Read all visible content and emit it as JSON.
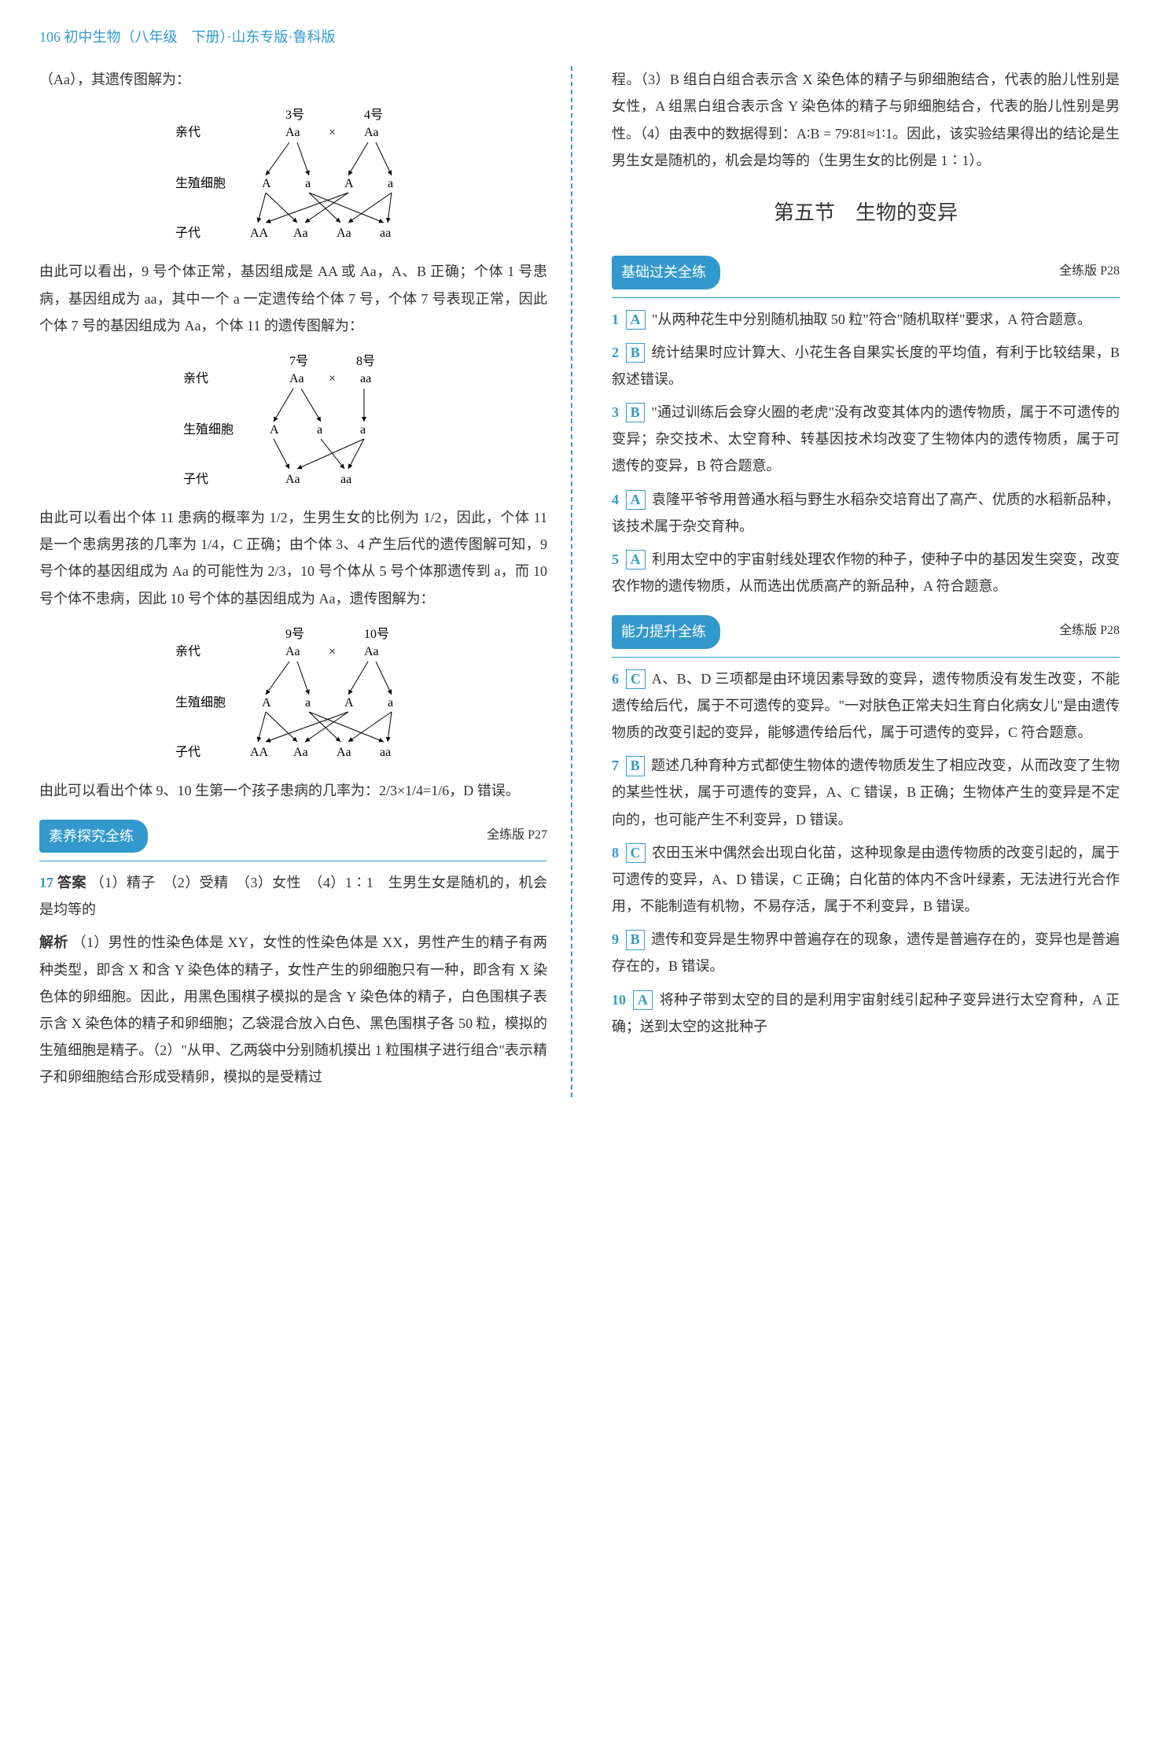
{
  "header": {
    "page_num": "106",
    "title": "初中生物（八年级　下册）·山东专版·鲁科版"
  },
  "left": {
    "intro": "（Aa），其遗传图解为：",
    "diagram1": {
      "p1_label": "3号",
      "p2_label": "4号",
      "parent_row": "亲代",
      "p1": "Aa",
      "cross": "×",
      "p2": "Aa",
      "gamete_row": "生殖细胞",
      "gametes": [
        "A",
        "a",
        "A",
        "a"
      ],
      "offspring_row": "子代",
      "offspring": [
        "AA",
        "Aa",
        "Aa",
        "aa"
      ]
    },
    "para1": "由此可以看出，9 号个体正常，基因组成是 AA 或 Aa，A、B 正确；个体 1 号患病，基因组成为 aa，其中一个 a 一定遗传给个体 7 号，个体 7 号表现正常，因此个体 7 号的基因组成为 Aa，个体 11 的遗传图解为：",
    "diagram2": {
      "p1_label": "7号",
      "p2_label": "8号",
      "parent_row": "亲代",
      "p1": "Aa",
      "cross": "×",
      "p2": "aa",
      "gamete_row": "生殖细胞",
      "gametes": [
        "A",
        "a",
        "a"
      ],
      "offspring_row": "子代",
      "offspring": [
        "Aa",
        "aa"
      ]
    },
    "para2": "由此可以看出个体 11 患病的概率为 1/2，生男生女的比例为 1/2，因此，个体 11 是一个患病男孩的几率为 1/4，C 正确；由个体 3、4 产生后代的遗传图解可知，9 号个体的基因组成为 Aa 的可能性为 2/3，10 号个体从 5 号个体那遗传到 a，而 10 号个体不患病，因此 10 号个体的基因组成为 Aa，遗传图解为：",
    "diagram3": {
      "p1_label": "9号",
      "p2_label": "10号",
      "parent_row": "亲代",
      "p1": "Aa",
      "cross": "×",
      "p2": "Aa",
      "gamete_row": "生殖细胞",
      "gametes": [
        "A",
        "a",
        "A",
        "a"
      ],
      "offspring_row": "子代",
      "offspring": [
        "AA",
        "Aa",
        "Aa",
        "aa"
      ]
    },
    "para3": "由此可以看出个体 9、10 生第一个孩子患病的几率为：2/3×1/4=1/6，D 错误。",
    "section1_header": "素养探究全练",
    "section1_ref": "全练版 P27",
    "q17_num": "17",
    "q17_answer_label": "答案",
    "q17_answer": "（1）精子　（2）受精　（3）女性　（4）1∶1　生男生女是随机的，机会是均等的",
    "q17_analysis_label": "解析",
    "q17_analysis": "（1）男性的性染色体是 XY，女性的性染色体是 XX，男性产生的精子有两种类型，即含 X 和含 Y 染色体的精子，女性产生的卵细胞只有一种，即含有 X 染色体的卵细胞。因此，用黑色围棋子模拟的是含 Y 染色体的精子，白色围棋子表示含 X 染色体的精子和卵细胞；乙袋混合放入白色、黑色围棋子各 50 粒，模拟的生殖细胞是精子。（2）\"从甲、乙两袋中分别随机摸出 1 粒围棋子进行组合\"表示精子和卵细胞结合形成受精卵，模拟的是受精过"
  },
  "right": {
    "para_cont": "程。（3）B 组白白组合表示含 X 染色体的精子与卵细胞结合，代表的胎儿性别是女性，A 组黑白组合表示含 Y 染色体的精子与卵细胞结合，代表的胎儿性别是男性。（4）由表中的数据得到：A∶B = 79∶81≈1∶1。因此，该实验结果得出的结论是生男生女是随机的，机会是均等的（生男生女的比例是 1∶1）。",
    "section_title": "第五节　生物的变异",
    "section2_header": "基础过关全练",
    "section2_ref": "全练版 P28",
    "items1": [
      {
        "num": "1",
        "letter": "A",
        "text": "\"从两种花生中分别随机抽取 50 粒\"符合\"随机取样\"要求，A 符合题意。"
      },
      {
        "num": "2",
        "letter": "B",
        "text": "统计结果时应计算大、小花生各自果实长度的平均值，有利于比较结果，B 叙述错误。"
      },
      {
        "num": "3",
        "letter": "B",
        "text": "\"通过训练后会穿火圈的老虎\"没有改变其体内的遗传物质，属于不可遗传的变异；杂交技术、太空育种、转基因技术均改变了生物体内的遗传物质，属于可遗传的变异，B 符合题意。"
      },
      {
        "num": "4",
        "letter": "A",
        "text": "袁隆平爷爷用普通水稻与野生水稻杂交培育出了高产、优质的水稻新品种，该技术属于杂交育种。"
      },
      {
        "num": "5",
        "letter": "A",
        "text": "利用太空中的宇宙射线处理农作物的种子，使种子中的基因发生突变，改变农作物的遗传物质，从而选出优质高产的新品种，A 符合题意。"
      }
    ],
    "section3_header": "能力提升全练",
    "section3_ref": "全练版 P28",
    "items2": [
      {
        "num": "6",
        "letter": "C",
        "text": "A、B、D 三项都是由环境因素导致的变异，遗传物质没有发生改变，不能遗传给后代，属于不可遗传的变异。\"一对肤色正常夫妇生育白化病女儿\"是由遗传物质的改变引起的变异，能够遗传给后代，属于可遗传的变异，C 符合题意。"
      },
      {
        "num": "7",
        "letter": "B",
        "text": "题述几种育种方式都使生物体的遗传物质发生了相应改变，从而改变了生物的某些性状，属于可遗传的变异，A、C 错误，B 正确；生物体产生的变异是不定向的，也可能产生不利变异，D 错误。"
      },
      {
        "num": "8",
        "letter": "C",
        "text": "农田玉米中偶然会出现白化苗，这种现象是由遗传物质的改变引起的，属于可遗传的变异，A、D 错误，C 正确；白化苗的体内不含叶绿素，无法进行光合作用，不能制造有机物，不易存活，属于不利变异，B 错误。"
      },
      {
        "num": "9",
        "letter": "B",
        "text": "遗传和变异是生物界中普遍存在的现象，遗传是普遍存在的，变异也是普遍存在的，B 错误。"
      },
      {
        "num": "10",
        "letter": "A",
        "text": "将种子带到太空的目的是利用宇宙射线引起种子变异进行太空育种，A 正确；送到太空的这批种子"
      }
    ]
  },
  "colors": {
    "accent": "#3399cc",
    "text": "#333333",
    "bg": "#ffffff"
  }
}
